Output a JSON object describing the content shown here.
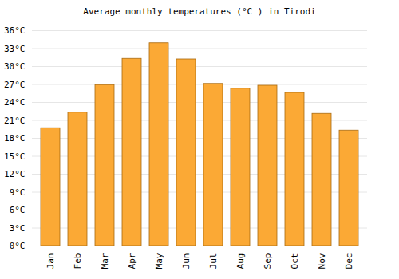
{
  "chart_data": {
    "type": "bar",
    "title": "Average monthly temperatures (°C ) in Tirodi",
    "categories": [
      "Jan",
      "Feb",
      "Mar",
      "Apr",
      "May",
      "Jun",
      "Jul",
      "Aug",
      "Sep",
      "Oct",
      "Nov",
      "Dec"
    ],
    "values": [
      19.7,
      22.3,
      26.9,
      31.3,
      33.9,
      31.2,
      27.1,
      26.3,
      26.8,
      25.6,
      22.1,
      19.3
    ],
    "color": "#fba935",
    "ylim": [
      0,
      36
    ],
    "yticks": [
      {
        "value": 0,
        "label": "0°C"
      },
      {
        "value": 3,
        "label": "3°C"
      },
      {
        "value": 6,
        "label": "6°C"
      },
      {
        "value": 9,
        "label": "9°C"
      },
      {
        "value": 12,
        "label": "12°C"
      },
      {
        "value": 15,
        "label": "15°C"
      },
      {
        "value": 18,
        "label": "18°C"
      },
      {
        "value": 21,
        "label": "21°C"
      },
      {
        "value": 24,
        "label": "24°C"
      },
      {
        "value": 27,
        "label": "27°C"
      },
      {
        "value": 30,
        "label": "30°C"
      },
      {
        "value": 33,
        "label": "33°C"
      },
      {
        "value": 36,
        "label": "36°C"
      }
    ],
    "grid": true
  }
}
